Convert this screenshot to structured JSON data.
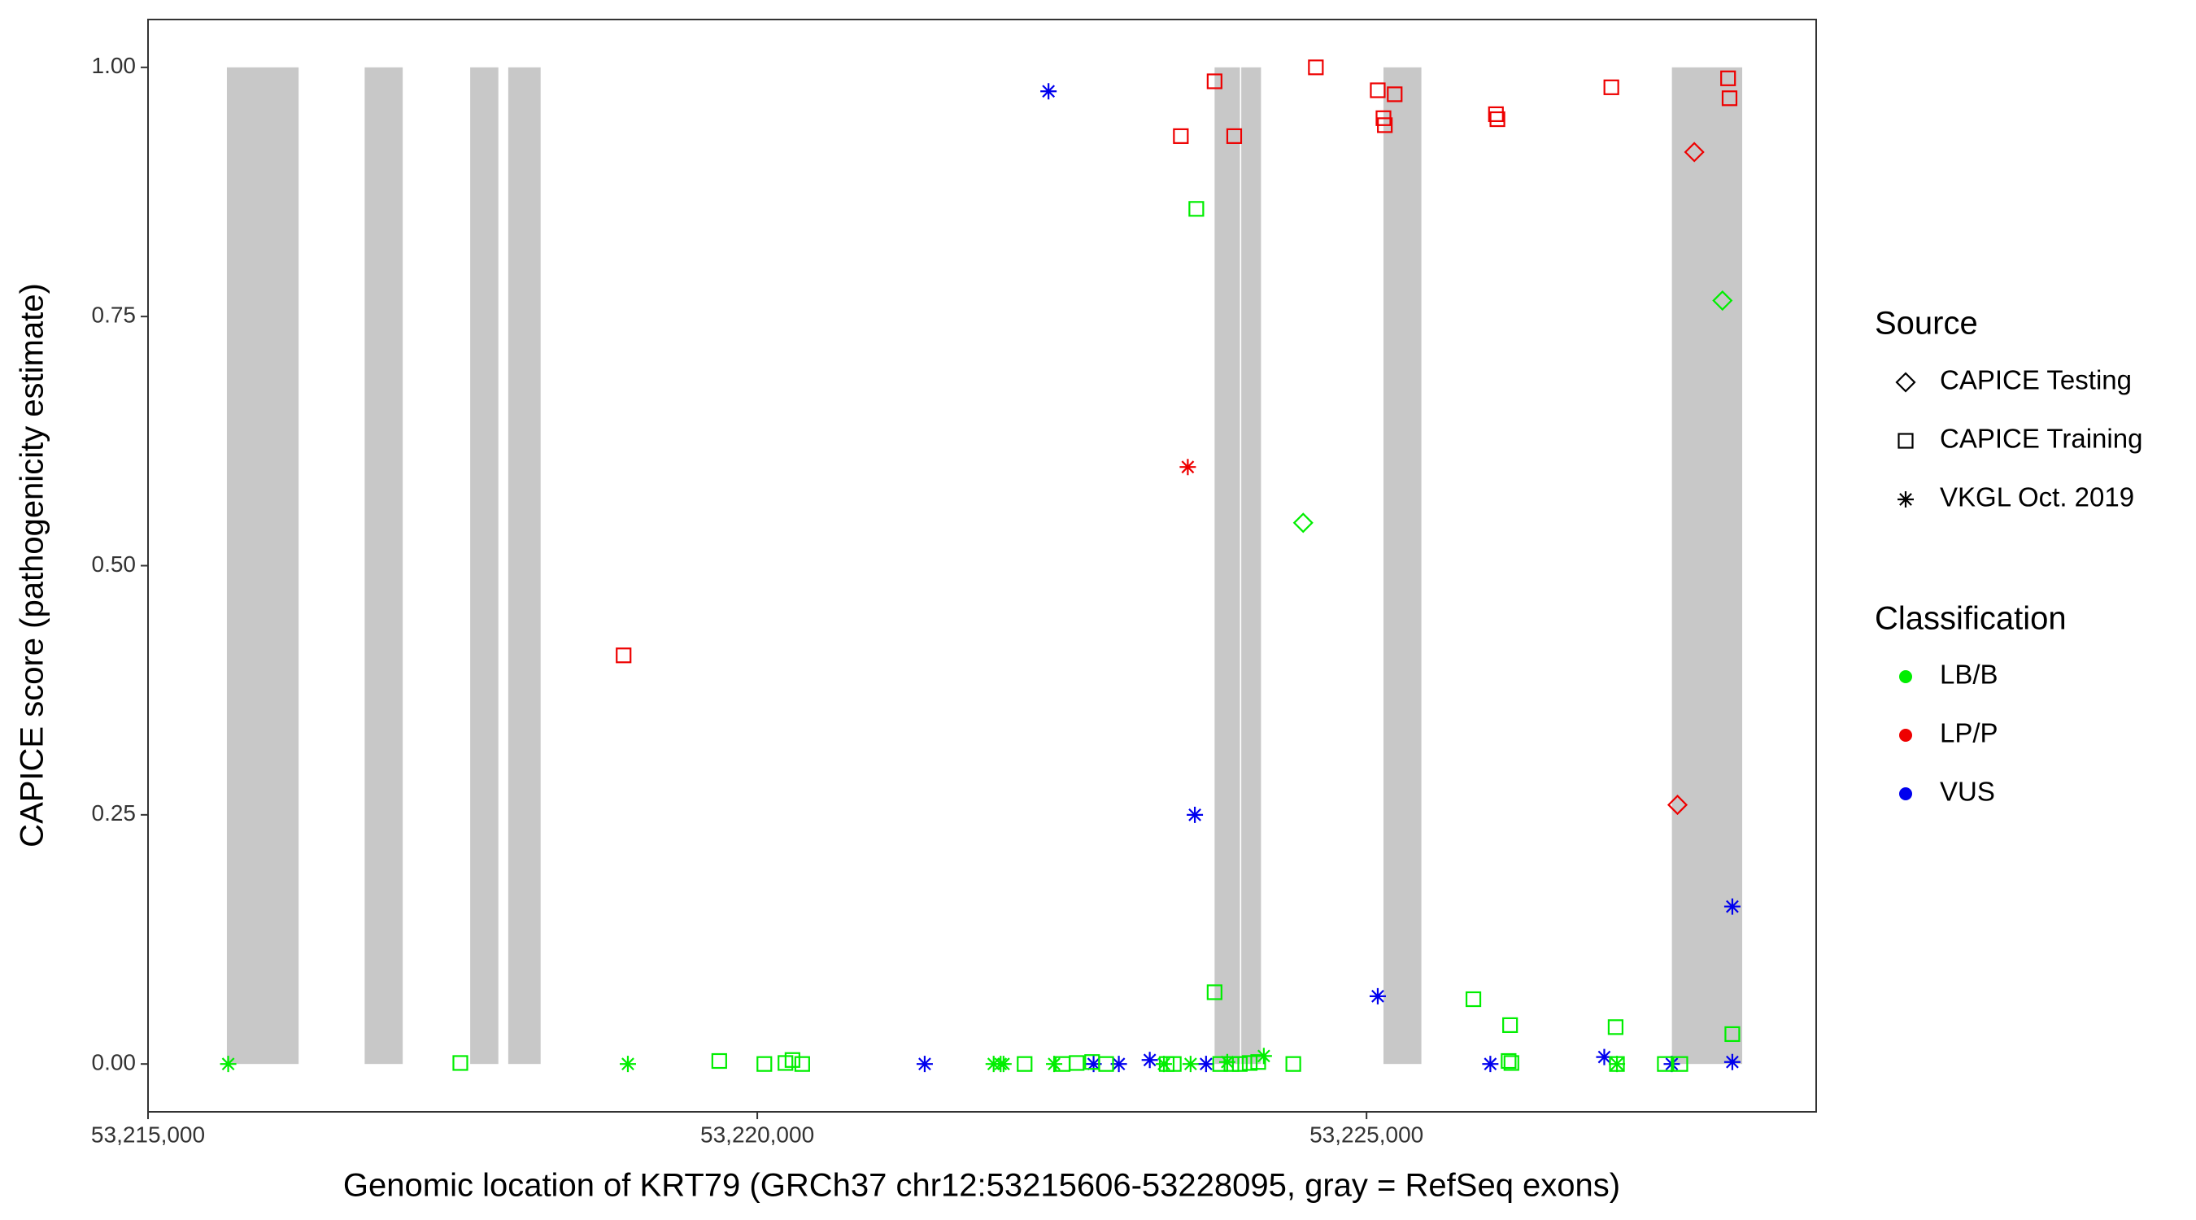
{
  "chart_data": {
    "type": "scatter",
    "xlabel": "Genomic location of KRT79 (GRCh37 chr12:53215606-53228095, gray = RefSeq exons)",
    "ylabel": "CAPICE score (pathogenicity estimate)",
    "xlim": [
      53215000,
      53228690
    ],
    "ylim": [
      -0.048,
      1.048
    ],
    "xticks": [
      {
        "value": 53215000,
        "label": "53,215,000"
      },
      {
        "value": 53220000,
        "label": "53,220,000"
      },
      {
        "value": 53225000,
        "label": "53,225,000"
      }
    ],
    "yticks": [
      {
        "value": 0,
        "label": "0.00"
      },
      {
        "value": 0.25,
        "label": "0.25"
      },
      {
        "value": 0.5,
        "label": "0.50"
      },
      {
        "value": 0.75,
        "label": "0.75"
      },
      {
        "value": 1,
        "label": "1.00"
      }
    ],
    "grid": false,
    "exon_color": "#c8c8c8",
    "exons": [
      [
        53215647,
        53216236
      ],
      [
        53216778,
        53217090
      ],
      [
        53217644,
        53217875
      ],
      [
        53217956,
        53218222
      ],
      [
        53223753,
        53223961
      ],
      [
        53223972,
        53224134
      ],
      [
        53225139,
        53225450
      ],
      [
        53227506,
        53228083
      ]
    ],
    "legend_source": {
      "title": "Source",
      "items": [
        {
          "name": "CAPICE Testing",
          "shape": "diamond"
        },
        {
          "name": "CAPICE Training",
          "shape": "square"
        },
        {
          "name": "VKGL Oct. 2019",
          "shape": "asterisk"
        }
      ]
    },
    "legend_classification": {
      "title": "Classification",
      "items": [
        {
          "name": "LB/B",
          "color": "#00ee00"
        },
        {
          "name": "LP/P",
          "color": "#ee0000"
        },
        {
          "name": "VUS",
          "color": "#0000ee"
        }
      ]
    },
    "series": [
      {
        "source": "CAPICE Training",
        "classification": "LP/P",
        "x": [
          53218903,
          53223476,
          53223753,
          53223914,
          53224584,
          53225092,
          53225139,
          53225150,
          53225231,
          53226062,
          53226074,
          53227009,
          53227967,
          53227979
        ],
        "values": [
          0.41,
          0.931,
          0.986,
          0.931,
          1.0,
          0.977,
          0.949,
          0.942,
          0.973,
          0.953,
          0.948,
          0.98,
          0.989,
          0.969
        ]
      },
      {
        "source": "CAPICE Testing",
        "classification": "LP/P",
        "x": [
          53227690,
          53227552
        ],
        "values": [
          0.915,
          0.26
        ]
      },
      {
        "source": "VKGL Oct. 2019",
        "classification": "LP/P",
        "x": [
          53223533
        ],
        "values": [
          0.599
        ]
      },
      {
        "source": "CAPICE Testing",
        "classification": "LB/B",
        "x": [
          53224480,
          53227921
        ],
        "values": [
          0.543,
          0.766
        ]
      },
      {
        "source": "VKGL Oct. 2019",
        "classification": "VUS",
        "x": [
          53222390,
          53223591,
          53225092,
          53228002,
          53221374,
          53222760,
          53222967,
          53223221,
          53223683,
          53226016,
          53226951,
          53227505,
          53228002
        ],
        "values": [
          0.976,
          0.25,
          0.068,
          0.158,
          0,
          0,
          0,
          0.004,
          0,
          0,
          0.007,
          0,
          0.002
        ]
      },
      {
        "source": "CAPICE Training",
        "classification": "LB/B",
        "x": [
          53223603,
          53223753,
          53225877,
          53226178,
          53227044,
          53228002,
          53217563,
          53219688,
          53220058,
          53220231,
          53220289,
          53220369,
          53222194,
          53222506,
          53222621,
          53222748,
          53222863,
          53223360,
          53223418,
          53223799,
          53223891,
          53223960,
          53224041,
          53224111,
          53224399,
          53226166,
          53226189,
          53227448,
          53227575,
          53227055
        ],
        "values": [
          0.858,
          0.072,
          0.065,
          0.039,
          0.037,
          0.03,
          0.001,
          0.003,
          0,
          0.001,
          0.004,
          0,
          0,
          0,
          0.001,
          0.002,
          0,
          0,
          0,
          0,
          0,
          0,
          0.001,
          0.002,
          0,
          0.003,
          0.001,
          0,
          0,
          0
        ]
      },
      {
        "source": "VKGL Oct. 2019",
        "classification": "LB/B",
        "x": [
          53215658,
          53218938,
          53221940,
          53221997,
          53222021,
          53222436,
          53223337,
          53223556,
          53223857,
          53224157,
          53227055
        ],
        "values": [
          0,
          0,
          0,
          0,
          0,
          0,
          0,
          0,
          0.002,
          0.008,
          0
        ]
      }
    ]
  }
}
